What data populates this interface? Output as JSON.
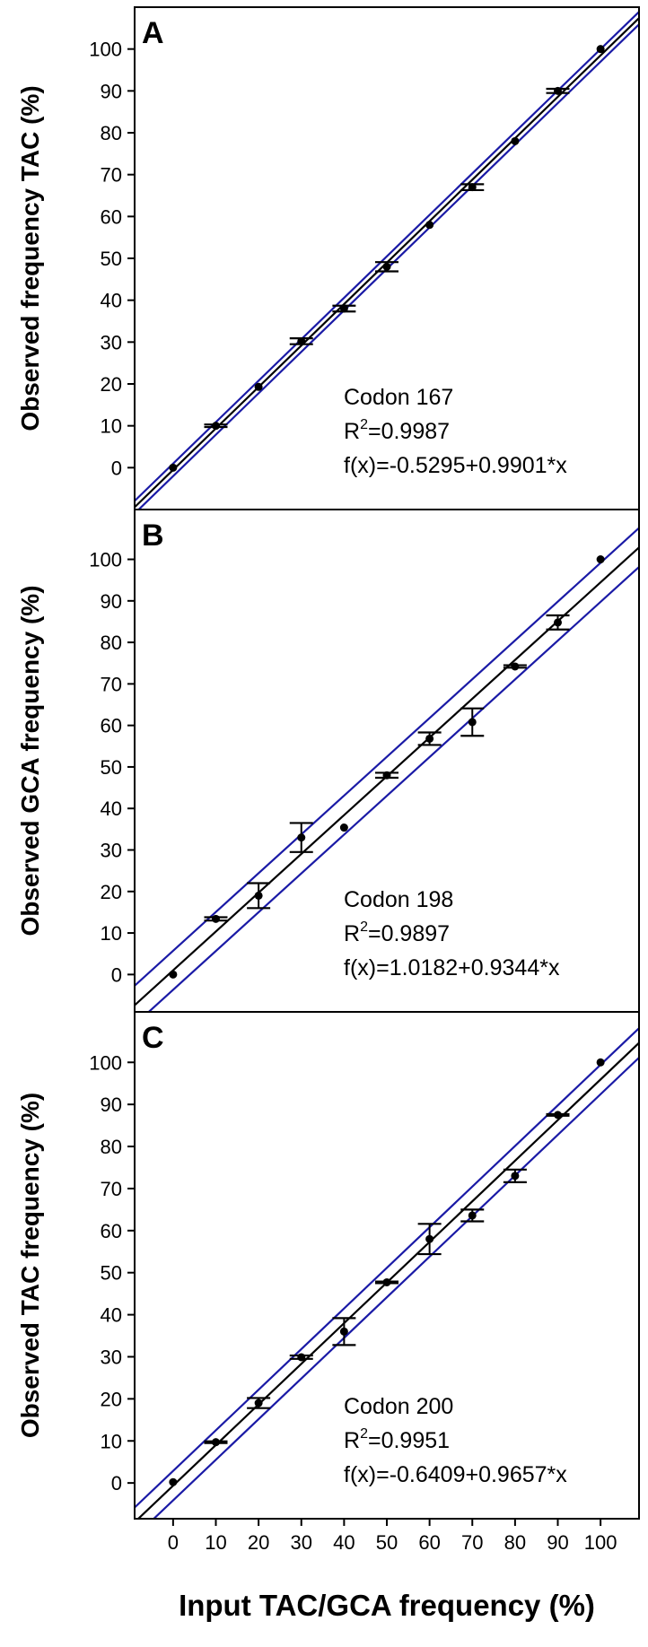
{
  "chart_data": {
    "type": "scatter",
    "xlabel": "Input TAC/GCA frequency (%)",
    "xlim": [
      -9,
      109
    ],
    "x_ticks": [
      0,
      10,
      20,
      30,
      40,
      50,
      60,
      70,
      80,
      90,
      100
    ],
    "panels": [
      {
        "label": "A",
        "ylabel": "Observed frequency TAC (%)",
        "ylim": [
          -10,
          110
        ],
        "y_ticks": [
          0,
          10,
          20,
          30,
          40,
          50,
          60,
          70,
          80,
          90,
          100
        ],
        "annotation": [
          "Codon 167",
          "R",
          "2",
          "=0.9987",
          "f(x)=-0.5295+0.9901*x"
        ],
        "fit": {
          "intercept": -0.5295,
          "slope": 0.9901
        },
        "ci_offset": 1.5,
        "points": [
          {
            "x": 0,
            "y": 0.0,
            "err": 0
          },
          {
            "x": 10,
            "y": 10.0,
            "err": 0.3
          },
          {
            "x": 20,
            "y": 19.3,
            "err": 0
          },
          {
            "x": 30,
            "y": 30.2,
            "err": 0.7
          },
          {
            "x": 40,
            "y": 38.0,
            "err": 0.7
          },
          {
            "x": 50,
            "y": 48.0,
            "err": 1.1
          },
          {
            "x": 60,
            "y": 58.0,
            "err": 0
          },
          {
            "x": 70,
            "y": 67.0,
            "err": 0.7
          },
          {
            "x": 80,
            "y": 78.0,
            "err": 0
          },
          {
            "x": 90,
            "y": 90.0,
            "err": 0.5
          },
          {
            "x": 100,
            "y": 100.0,
            "err": 0
          }
        ]
      },
      {
        "label": "B",
        "ylabel": "Observed GCA frequency (%)",
        "ylim": [
          -9,
          112
        ],
        "y_ticks": [
          0,
          10,
          20,
          30,
          40,
          50,
          60,
          70,
          80,
          90,
          100
        ],
        "annotation": [
          "Codon 198",
          "R",
          "2",
          "=0.9897",
          "f(x)=1.0182+0.9344*x"
        ],
        "fit": {
          "intercept": 1.0182,
          "slope": 0.9344
        },
        "ci_offset": 4.7,
        "points": [
          {
            "x": 0,
            "y": 0.0,
            "err": 0
          },
          {
            "x": 10,
            "y": 13.4,
            "err": 0.4
          },
          {
            "x": 20,
            "y": 19.0,
            "err": 3.0
          },
          {
            "x": 30,
            "y": 33.0,
            "err": 3.5
          },
          {
            "x": 40,
            "y": 35.4,
            "err": 0
          },
          {
            "x": 50,
            "y": 48.0,
            "err": 0.6
          },
          {
            "x": 60,
            "y": 56.8,
            "err": 1.5
          },
          {
            "x": 70,
            "y": 60.8,
            "err": 3.3
          },
          {
            "x": 80,
            "y": 74.2,
            "err": 0.3
          },
          {
            "x": 90,
            "y": 84.8,
            "err": 1.7
          },
          {
            "x": 100,
            "y": 100.0,
            "err": 0
          }
        ]
      },
      {
        "label": "C",
        "ylabel": "Observed TAC frequency (%)",
        "ylim": [
          -8.5,
          112
        ],
        "y_ticks": [
          0,
          10,
          20,
          30,
          40,
          50,
          60,
          70,
          80,
          90,
          100
        ],
        "annotation": [
          "Codon 200",
          "R",
          "2",
          "=0.9951",
          "f(x)=-0.6409+0.9657*x"
        ],
        "fit": {
          "intercept": -0.6409,
          "slope": 0.9657
        },
        "ci_offset": 3.5,
        "points": [
          {
            "x": 0,
            "y": 0.2,
            "err": 0
          },
          {
            "x": 10,
            "y": 9.7,
            "err": 0.2
          },
          {
            "x": 20,
            "y": 19.0,
            "err": 1.2
          },
          {
            "x": 30,
            "y": 29.9,
            "err": 0.4
          },
          {
            "x": 40,
            "y": 36.0,
            "err": 3.2
          },
          {
            "x": 50,
            "y": 47.7,
            "err": 0.2
          },
          {
            "x": 60,
            "y": 58.0,
            "err": 3.6
          },
          {
            "x": 70,
            "y": 63.6,
            "err": 1.4
          },
          {
            "x": 80,
            "y": 73.0,
            "err": 1.5
          },
          {
            "x": 90,
            "y": 87.5,
            "err": 0.2
          },
          {
            "x": 100,
            "y": 100.0,
            "err": 0
          }
        ]
      }
    ],
    "colors": {
      "fit_line": "#000000",
      "ci_line": "#1a1aa6",
      "point": "#000000",
      "frame": "#000000"
    }
  }
}
